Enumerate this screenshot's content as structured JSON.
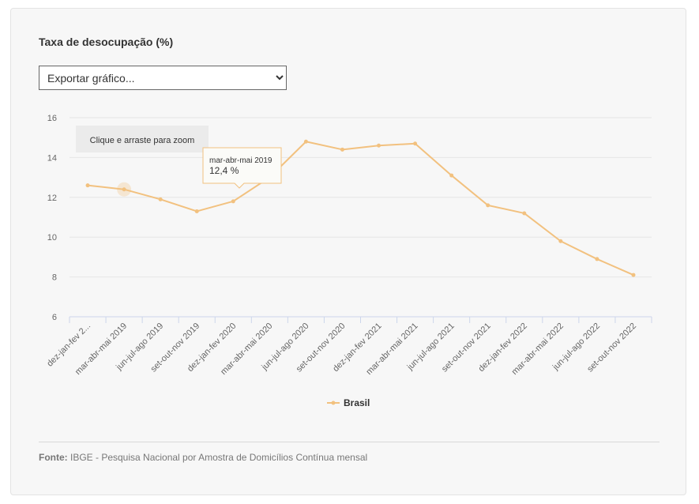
{
  "page": {
    "title": "Taxa de desocupação (%)",
    "export_select": {
      "selected": "Exportar gráfico...",
      "options": [
        "Exportar gráfico..."
      ]
    },
    "zoom_hint": "Clique e arraste para zoom",
    "source_label": "Fonte:",
    "source_text": " IBGE - Pesquisa Nacional por Amostra de Domicílios Contínua mensal"
  },
  "tooltip": {
    "category": "mar-abr-mai 2019",
    "value_text": "12,4 %"
  },
  "colors": {
    "series": "#f2c17f",
    "grid": "#e6e6e6",
    "axis": "#ccd6eb"
  },
  "chart_data": {
    "type": "line",
    "title": "Taxa de desocupação (%)",
    "categories": [
      "dez-jan-fev 2...",
      "mar-abr-mai 2019",
      "jun-jul-ago 2019",
      "set-out-nov 2019",
      "dez-jan-fev 2020",
      "mar-abr-mai 2020",
      "jun-jul-ago 2020",
      "set-out-nov 2020",
      "dez-jan-fev 2021",
      "mar-abr-mai 2021",
      "jun-jul-ago 2021",
      "set-out-nov 2021",
      "dez-jan-fev 2022",
      "mar-abr-mai 2022",
      "jun-jul-ago 2022",
      "set-out-nov 2022"
    ],
    "series": [
      {
        "name": "Brasil",
        "values": [
          12.6,
          12.4,
          11.9,
          11.3,
          11.8,
          13.0,
          14.8,
          14.4,
          14.6,
          14.7,
          13.1,
          11.6,
          11.2,
          9.8,
          8.9,
          8.1
        ]
      }
    ],
    "y_ticks": [
      "6",
      "8",
      "10",
      "12",
      "14",
      "16"
    ],
    "ylim": [
      6,
      16
    ],
    "grid": true,
    "legend_position": "bottom-center",
    "highlighted_index": 1
  }
}
